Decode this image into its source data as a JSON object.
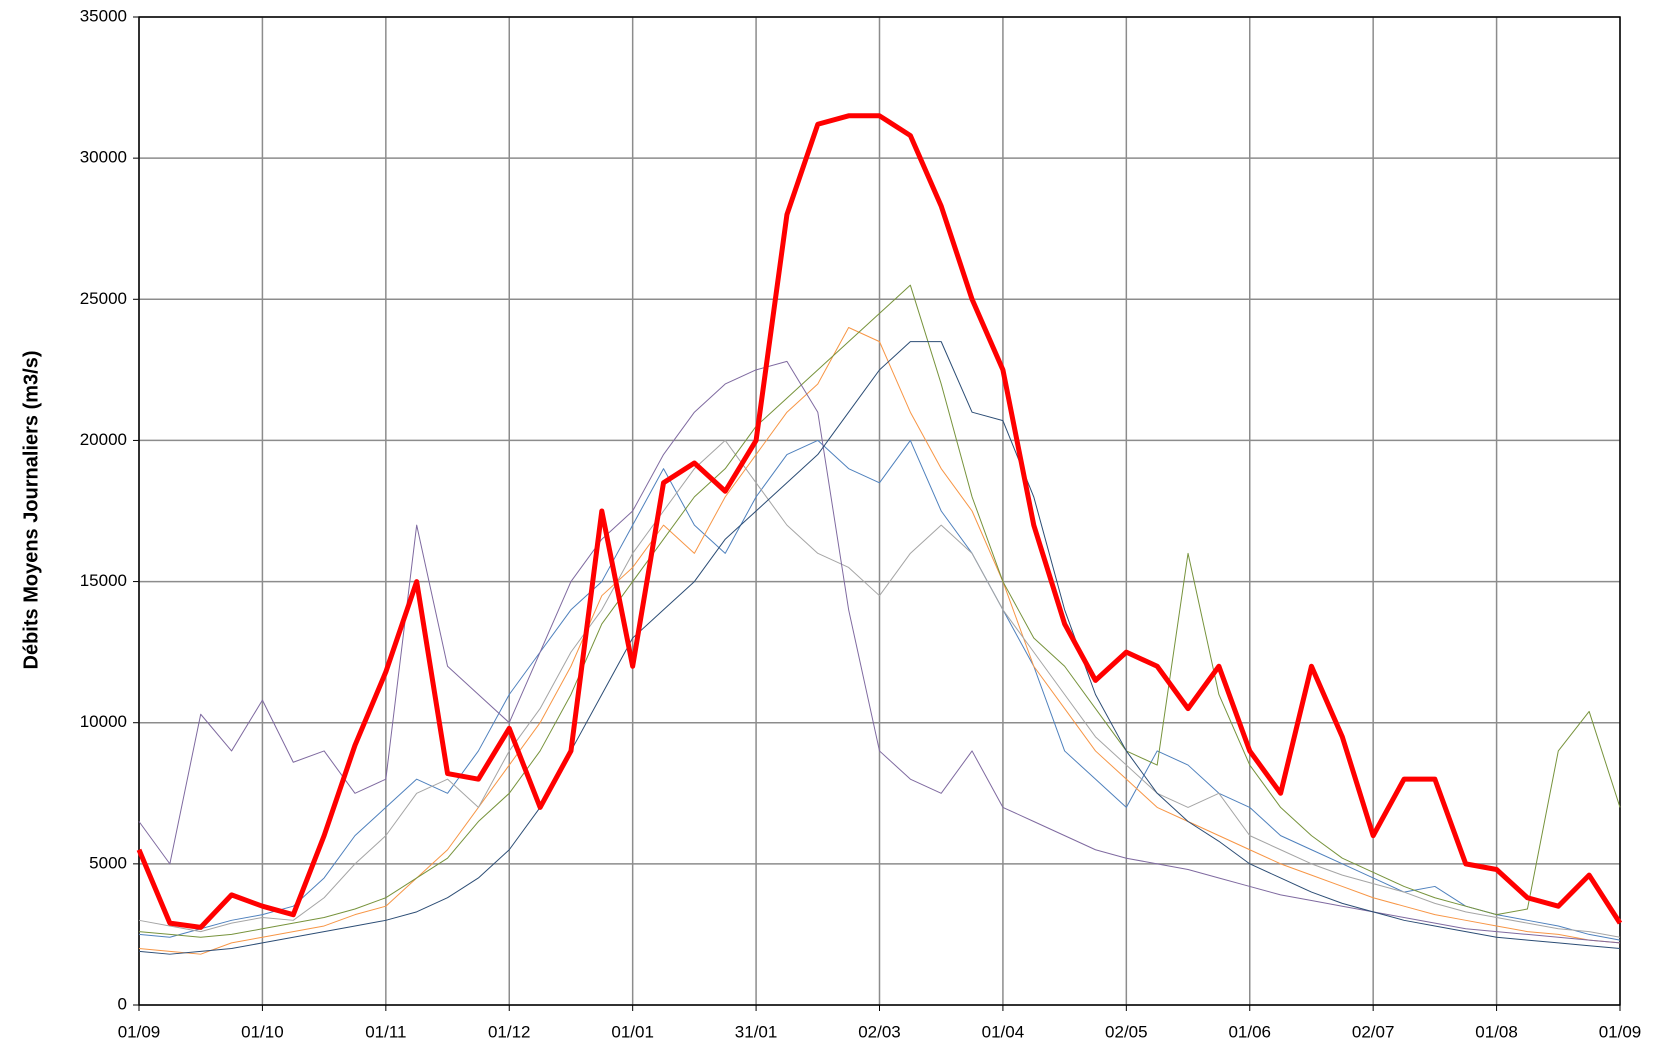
{
  "chart_data": {
    "type": "line",
    "y_label": "Débits Moyens Journaliers (m3/s)",
    "categories": [
      "01/09",
      null,
      null,
      null,
      "01/10",
      null,
      null,
      null,
      "01/11",
      null,
      null,
      null,
      "01/12",
      null,
      null,
      null,
      "01/01",
      null,
      null,
      null,
      "31/01",
      null,
      null,
      null,
      "02/03",
      null,
      null,
      null,
      "01/04",
      null,
      null,
      null,
      "02/05",
      null,
      null,
      null,
      "01/06",
      null,
      null,
      null,
      "02/07",
      null,
      null,
      null,
      "01/08",
      null,
      null,
      null,
      "01/09"
    ],
    "ylim": [
      0,
      35000
    ],
    "yticks": [
      0,
      5000,
      10000,
      15000,
      20000,
      25000,
      30000,
      35000
    ],
    "grid": true,
    "series": [
      {
        "color": "#4f81bd",
        "width": 1,
        "values": [
          2500,
          2400,
          2700,
          3000,
          3200,
          3500,
          4500,
          6000,
          7000,
          8000,
          7500,
          9000,
          11000,
          12500,
          14000,
          15000,
          17000,
          19000,
          17000,
          16000,
          18000,
          19500,
          20000,
          19000,
          18500,
          20000,
          17500,
          16000,
          14000,
          12000,
          9000,
          8000,
          7000,
          9000,
          8500,
          7500,
          7000,
          6000,
          5500,
          5000,
          4500,
          4000,
          4200,
          3500,
          3200,
          3000,
          2800,
          2500,
          2300
        ]
      },
      {
        "color": "#f79646",
        "width": 1,
        "values": [
          2000,
          1900,
          1800,
          2200,
          2400,
          2600,
          2800,
          3200,
          3500,
          4500,
          5500,
          7000,
          8500,
          10000,
          12000,
          14500,
          15500,
          17000,
          16000,
          18000,
          19500,
          21000,
          22000,
          24000,
          23500,
          21000,
          19000,
          17500,
          15000,
          12000,
          10500,
          9000,
          8000,
          7000,
          6500,
          6000,
          5500,
          5000,
          4600,
          4200,
          3800,
          3500,
          3200,
          3000,
          2800,
          2600,
          2500,
          2300,
          2200
        ]
      },
      {
        "color": "#a5a5a5",
        "width": 1,
        "values": [
          3000,
          2800,
          2600,
          2900,
          3100,
          3000,
          3800,
          5000,
          6000,
          7500,
          8000,
          7000,
          9000,
          10500,
          12500,
          14000,
          16000,
          17500,
          19000,
          20000,
          18500,
          17000,
          16000,
          15500,
          14500,
          16000,
          17000,
          16000,
          14000,
          12500,
          11000,
          9500,
          8500,
          7500,
          7000,
          7500,
          6000,
          5500,
          5000,
          4600,
          4300,
          4000,
          3600,
          3300,
          3100,
          2900,
          2700,
          2600,
          2400
        ]
      },
      {
        "color": "#77933c",
        "width": 1,
        "values": [
          2600,
          2500,
          2400,
          2500,
          2700,
          2900,
          3100,
          3400,
          3800,
          4500,
          5200,
          6500,
          7500,
          9000,
          11000,
          13500,
          15000,
          16500,
          18000,
          19000,
          20500,
          21500,
          22500,
          23500,
          24500,
          25500,
          22000,
          18000,
          15000,
          13000,
          12000,
          10500,
          9000,
          8500,
          16000,
          11000,
          8500,
          7000,
          6000,
          5200,
          4700,
          4200,
          3800,
          3500,
          3200,
          3400,
          9000,
          10400,
          7000
        ]
      },
      {
        "color": "#7f6aa0",
        "width": 1,
        "values": [
          6500,
          5000,
          10300,
          9000,
          10800,
          8600,
          9000,
          7500,
          8000,
          17000,
          12000,
          11000,
          10000,
          12500,
          15000,
          16500,
          17500,
          19500,
          21000,
          22000,
          22500,
          22800,
          21000,
          14000,
          9000,
          8000,
          7500,
          9000,
          7000,
          6500,
          6000,
          5500,
          5200,
          5000,
          4800,
          4500,
          4200,
          3900,
          3700,
          3500,
          3300,
          3100,
          2900,
          2700,
          2600,
          2500,
          2400,
          2300,
          2200
        ]
      },
      {
        "color": "#2c4d75",
        "width": 1,
        "values": [
          1900,
          1800,
          1900,
          2000,
          2200,
          2400,
          2600,
          2800,
          3000,
          3300,
          3800,
          4500,
          5500,
          7000,
          9000,
          11000,
          13000,
          14000,
          15000,
          16500,
          17500,
          18500,
          19500,
          21000,
          22500,
          23500,
          23500,
          21000,
          20700,
          18000,
          14000,
          11000,
          9000,
          7500,
          6500,
          5800,
          5000,
          4500,
          4000,
          3600,
          3300,
          3000,
          2800,
          2600,
          2400,
          2300,
          2200,
          2100,
          2000
        ]
      },
      {
        "color": "#ff0000",
        "width": 5,
        "values": [
          5500,
          2900,
          2750,
          3900,
          3500,
          3200,
          6000,
          9200,
          11800,
          15000,
          8200,
          8000,
          9800,
          7000,
          9000,
          17500,
          12000,
          18500,
          19200,
          18200,
          20000,
          28000,
          31200,
          31500,
          31500,
          30800,
          28300,
          25000,
          22500,
          17000,
          13500,
          11500,
          12500,
          12000,
          10500,
          12000,
          9000,
          7500,
          12000,
          9500,
          6000,
          8000,
          8000,
          5000,
          4800,
          3800,
          3500,
          4600,
          2900
        ]
      }
    ]
  }
}
